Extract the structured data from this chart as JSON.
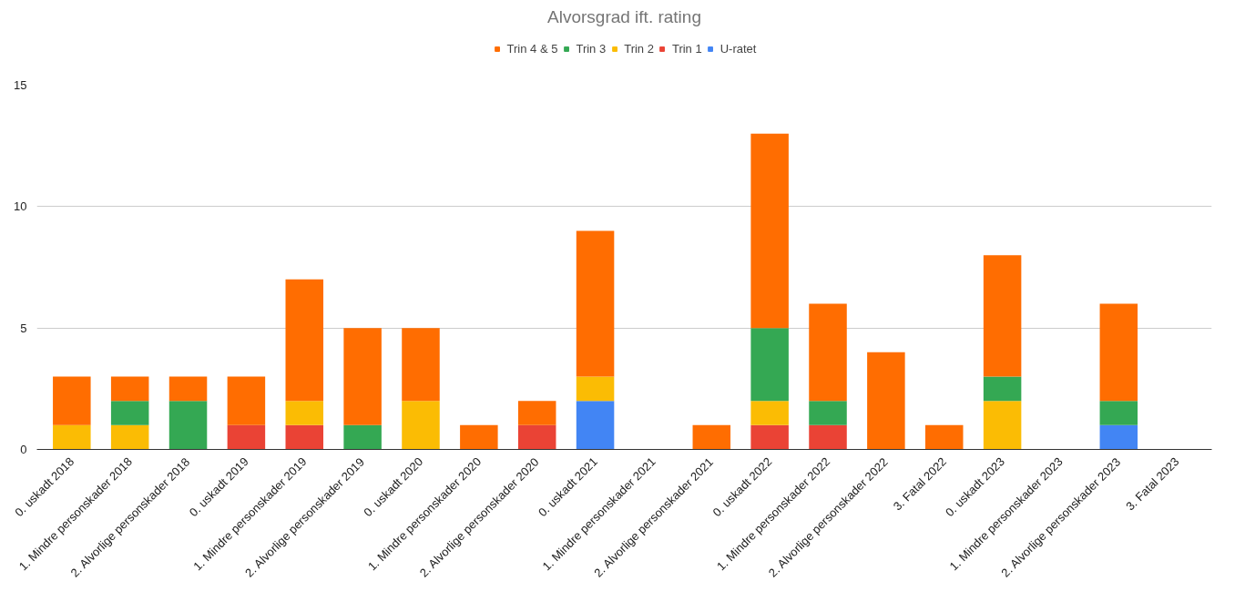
{
  "chart_data": {
    "type": "bar",
    "title": "Alvorsgrad ift. rating",
    "stacked": true,
    "categories": [
      "0. uskadt 2018",
      "1. Mindre personskader 2018",
      "2. Alvorlige personskader 2018",
      "0. uskadt 2019",
      "1. Mindre personskader 2019",
      "2. Alvorlige personskader 2019",
      "0. uskadt 2020",
      "1. Mindre personskader 2020",
      "2. Alvorlige personskader 2020",
      "0. uskadt 2021",
      "1. Mindre personskader 2021",
      "2. Alvorlige personskader 2021",
      "0. uskadt 2022",
      "1. Mindre personskader 2022",
      "2. Alvorlige personskader 2022",
      "3. Fatal 2022",
      "0. uskadt 2023",
      "1. Mindre personskader 2023",
      "2. Alvorlige personskader 2023",
      "3. Fatal 2023"
    ],
    "series": [
      {
        "name": "U-ratet",
        "color": "#4285f4",
        "values": [
          0,
          0,
          0,
          0,
          0,
          0,
          0,
          0,
          0,
          2,
          0,
          0,
          0,
          0,
          0,
          0,
          0,
          0,
          1,
          0
        ]
      },
      {
        "name": "Trin 1",
        "color": "#ea4335",
        "values": [
          0,
          0,
          0,
          1,
          1,
          0,
          0,
          0,
          1,
          0,
          0,
          0,
          1,
          1,
          0,
          0,
          0,
          0,
          0,
          0
        ]
      },
      {
        "name": "Trin 2",
        "color": "#fbbc04",
        "values": [
          1,
          1,
          0,
          0,
          1,
          0,
          2,
          0,
          0,
          1,
          0,
          0,
          1,
          0,
          0,
          0,
          2,
          0,
          0,
          0
        ]
      },
      {
        "name": "Trin 3",
        "color": "#34a853",
        "values": [
          0,
          1,
          2,
          0,
          0,
          1,
          0,
          0,
          0,
          0,
          0,
          0,
          3,
          1,
          0,
          0,
          1,
          0,
          1,
          0
        ]
      },
      {
        "name": "Trin 4 & 5",
        "color": "#ff6d01",
        "values": [
          2,
          1,
          1,
          2,
          5,
          4,
          3,
          1,
          1,
          6,
          0,
          1,
          8,
          4,
          4,
          1,
          5,
          0,
          4,
          0
        ]
      }
    ],
    "ylim": [
      0,
      15
    ],
    "yticks": [
      0,
      5,
      10,
      15
    ],
    "grid": "y",
    "legend": "top"
  }
}
